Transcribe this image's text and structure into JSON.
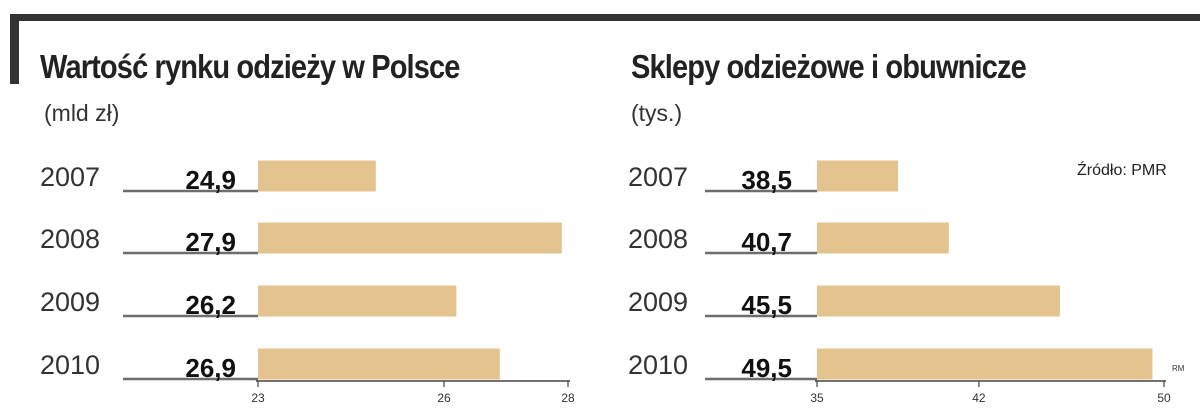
{
  "chart_data": [
    {
      "type": "bar",
      "orientation": "horizontal",
      "title": "Wartość rynku odzieży w Polsce",
      "unit": "(mld zł)",
      "categories": [
        "2007",
        "2008",
        "2009",
        "2010"
      ],
      "values": [
        24.9,
        27.9,
        26.2,
        26.9
      ],
      "value_labels": [
        "24,9",
        "27,9",
        "26,2",
        "26,9"
      ],
      "xlim": [
        23,
        28
      ],
      "xticks": [
        23,
        26,
        28
      ],
      "bar_color": "#e3c48f",
      "grid": false
    },
    {
      "type": "bar",
      "orientation": "horizontal",
      "title": "Sklepy odzieżowe i obuwnicze",
      "unit": "(tys.)",
      "categories": [
        "2007",
        "2008",
        "2009",
        "2010"
      ],
      "values": [
        38.5,
        40.7,
        45.5,
        49.5
      ],
      "value_labels": [
        "38,5",
        "40,7",
        "45,5",
        "49,5"
      ],
      "xlim": [
        35,
        50
      ],
      "xticks": [
        35,
        42,
        50
      ],
      "bar_color": "#e3c48f",
      "grid": false
    }
  ],
  "source": "Źródło: PMR",
  "author_mark": "RM"
}
